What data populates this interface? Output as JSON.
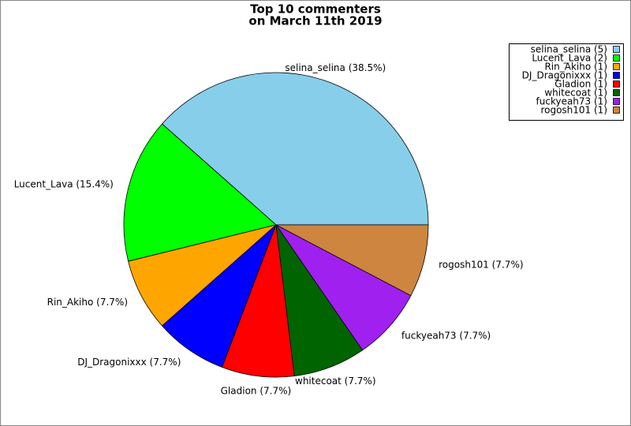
{
  "chart_data": {
    "type": "pie",
    "title": "Top 10 commenters",
    "subtitle": "on March 11th 2019",
    "values": [
      5,
      2,
      1,
      1,
      1,
      1,
      1,
      1
    ],
    "slice_labels": [
      "selina_selina (38.5%)",
      "Lucent_Lava (15.4%)",
      "Rin_Akiho (7.7%)",
      "DJ_Dragonixxx (7.7%)",
      "Gladion (7.7%)",
      "whitecoat (7.7%)",
      "fuckyeah73 (7.7%)",
      "rogosh101 (7.7%)"
    ],
    "legend_labels": [
      "selina_selina (5)",
      "Lucent_Lava (2)",
      "Rin_Akiho (1)",
      "DJ_Dragonixxx (1)",
      "Gladion (1)",
      "whitecoat (1)",
      "fuckyeah73 (1)",
      "rogosh101 (1)"
    ],
    "colors": [
      "#87ceeb",
      "#00ff00",
      "#ffa500",
      "#0000ff",
      "#ff0000",
      "#006400",
      "#a020f0",
      "#cd853f"
    ],
    "legend_position": "upper right"
  }
}
